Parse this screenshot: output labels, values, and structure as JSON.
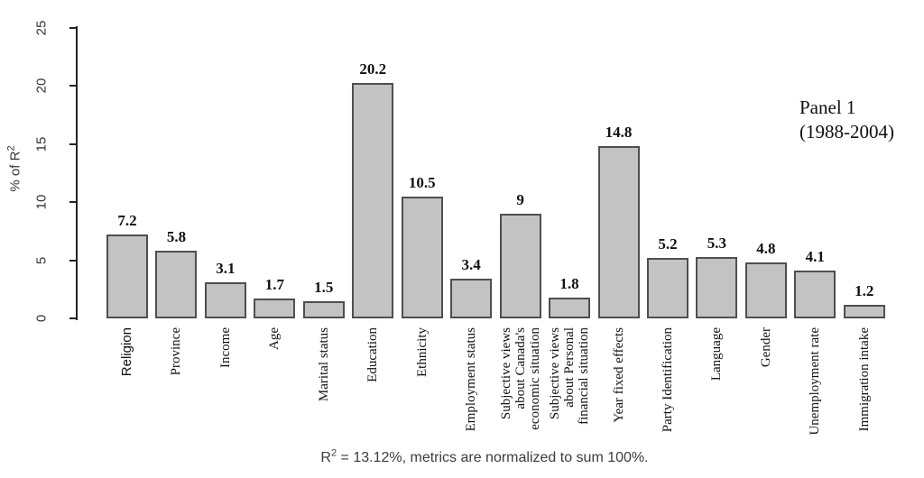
{
  "panel_label": {
    "line1": "Panel 1",
    "line2": "(1988-2004)"
  },
  "caption": {
    "prefix": "R",
    "sup": "2",
    "rest": " = 13.12%, metrics are normalized to sum 100%."
  },
  "chart_data": {
    "type": "bar",
    "title": "",
    "xlabel": "",
    "ylabel": {
      "prefix": "% of R",
      "sup": "2"
    },
    "ylim": [
      0,
      25
    ],
    "yticks": [
      0,
      5,
      10,
      15,
      20,
      25
    ],
    "grid": false,
    "legend": null,
    "bar_fill": "#c3c3c3",
    "bar_border": "#4f4f4f",
    "categories": [
      {
        "lines": [
          "Religion"
        ],
        "sans": true
      },
      {
        "lines": [
          "Province"
        ]
      },
      {
        "lines": [
          "Income"
        ]
      },
      {
        "lines": [
          "Age"
        ]
      },
      {
        "lines": [
          "Marital status"
        ]
      },
      {
        "lines": [
          "Education"
        ]
      },
      {
        "lines": [
          "Ethnicity"
        ]
      },
      {
        "lines": [
          "Employment status"
        ]
      },
      {
        "lines": [
          "Subjective views",
          "about Canada's",
          "economic situation"
        ]
      },
      {
        "lines": [
          "Subjective views",
          "about Personal",
          "financial situation"
        ]
      },
      {
        "lines": [
          "Year fixed effects"
        ]
      },
      {
        "lines": [
          "Party Identification"
        ]
      },
      {
        "lines": [
          "Language"
        ]
      },
      {
        "lines": [
          "Gender"
        ]
      },
      {
        "lines": [
          "Unemployment rate"
        ]
      },
      {
        "lines": [
          "Immigration intake"
        ]
      }
    ],
    "values": [
      7.2,
      5.8,
      3.1,
      1.7,
      1.5,
      20.2,
      10.5,
      3.4,
      9,
      1.8,
      14.8,
      5.2,
      5.3,
      4.8,
      4.1,
      1.2
    ],
    "value_labels": [
      "7.2",
      "5.8",
      "3.1",
      "1.7",
      "1.5",
      "20.2",
      "10.5",
      "3.4",
      "9",
      "1.8",
      "14.8",
      "5.2",
      "5.3",
      "4.8",
      "4.1",
      "1.2"
    ]
  }
}
